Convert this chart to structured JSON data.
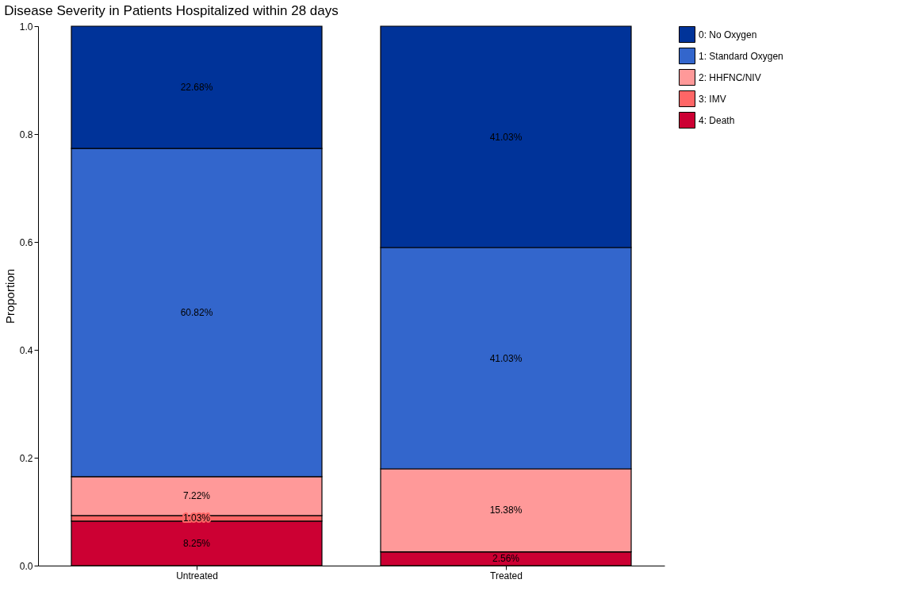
{
  "chart_data": {
    "type": "bar",
    "title": "Disease Severity in Patients Hospitalized within 28 days",
    "ylabel": "Proportion",
    "categories": [
      "Untreated",
      "Treated"
    ],
    "stacked": true,
    "legend": "right",
    "grid": false,
    "ylim": [
      0,
      1
    ],
    "yticks": [
      {
        "value": 0,
        "label": "0.0"
      },
      0.2,
      0.4,
      0.6,
      0.8,
      {
        "value": 1,
        "label": "1.0"
      }
    ],
    "series": [
      {
        "name": "4: Death",
        "color": "#cc0033",
        "values": [
          0.0825,
          0.0256
        ],
        "value_labels": [
          "8.25%",
          "2.56%"
        ]
      },
      {
        "name": "3: IMV",
        "color": "#ff6666",
        "values": [
          0.0103,
          0
        ],
        "value_labels": [
          "1.03%",
          null
        ]
      },
      {
        "name": "2: HHFNC/NIV",
        "color": "#ff9999",
        "values": [
          0.0722,
          0.1538
        ],
        "value_labels": [
          "7.22%",
          "15.38%"
        ]
      },
      {
        "name": "1: Standard Oxygen",
        "color": "#3366cc",
        "values": [
          0.6082,
          0.4103
        ],
        "value_labels": [
          "60.82%",
          "41.03%"
        ]
      },
      {
        "name": "0: No Oxygen",
        "color": "#003399",
        "values": [
          0.2268,
          0.4103
        ],
        "value_labels": [
          "22.68%",
          "41.03%"
        ]
      }
    ]
  }
}
